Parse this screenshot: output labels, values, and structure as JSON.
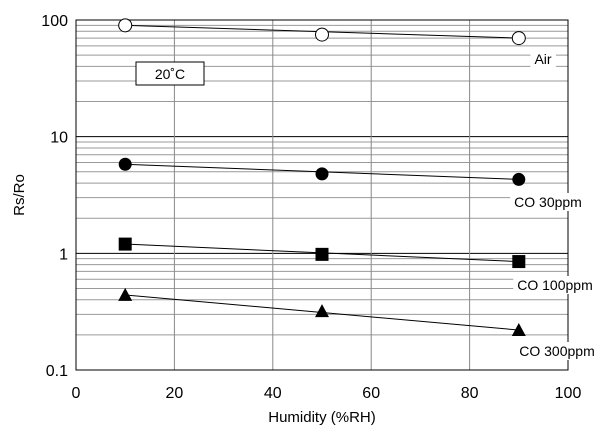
{
  "chart_data": {
    "type": "scatter",
    "xlabel": "Humidity (%RH)",
    "ylabel": "Rs/Ro",
    "xlim": [
      0,
      100
    ],
    "ylim": [
      0.1,
      100
    ],
    "y_scale": "log",
    "grid": true,
    "x_ticks": [
      "0",
      "20",
      "40",
      "60",
      "80",
      "100"
    ],
    "y_ticks": [
      "0.1",
      "1",
      "10",
      "100"
    ],
    "annotation": "20˚C",
    "series": [
      {
        "name": "Air",
        "marker": "open-circle",
        "x": [
          10,
          50,
          90
        ],
        "y": [
          90,
          75,
          70
        ]
      },
      {
        "name": "CO 30ppm",
        "marker": "filled-circle",
        "x": [
          10,
          50,
          90
        ],
        "y": [
          5.8,
          4.8,
          4.3
        ]
      },
      {
        "name": "CO 100ppm",
        "marker": "filled-square",
        "x": [
          10,
          50,
          90
        ],
        "y": [
          1.2,
          0.98,
          0.85
        ]
      },
      {
        "name": "CO 300ppm",
        "marker": "filled-triangle",
        "x": [
          10,
          50,
          90
        ],
        "y": [
          0.44,
          0.32,
          0.22
        ]
      }
    ]
  }
}
